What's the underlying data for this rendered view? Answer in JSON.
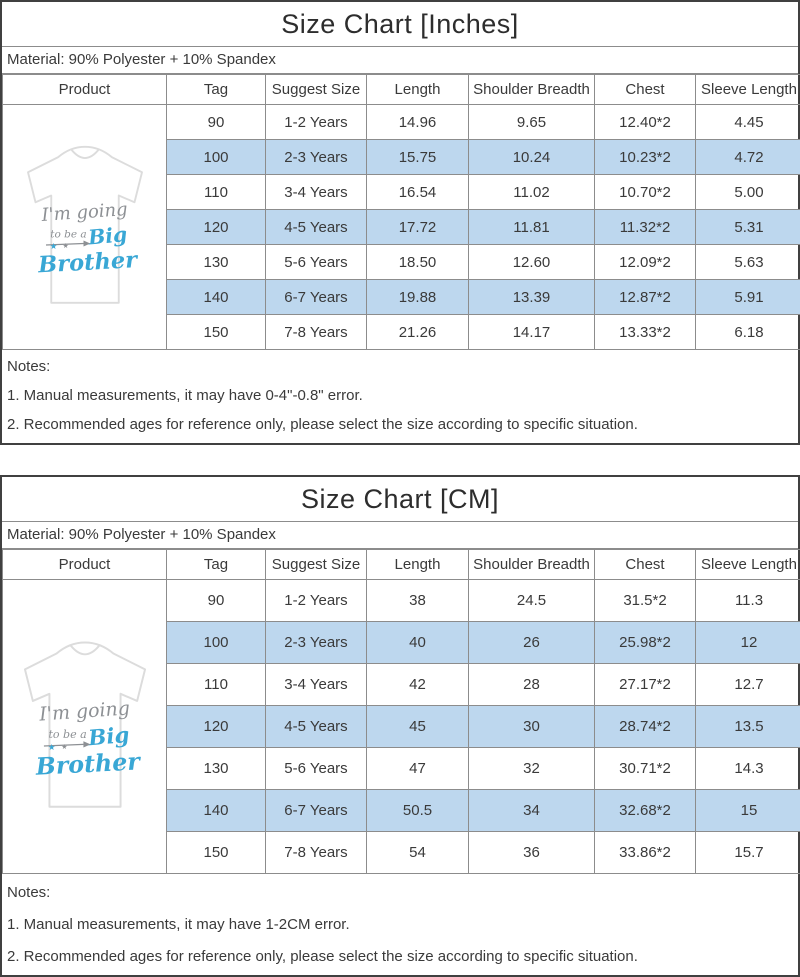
{
  "colors": {
    "row_highlight": "#BDD7EE",
    "border_outer": "#404040",
    "border_inner": "#8c8c8c",
    "text": "#3a3a3a",
    "shirt_outline": "#dcdcdc",
    "print_gray": "#8d9094",
    "print_blue": "#39a7d5"
  },
  "product_image": {
    "description": "white kids t-shirt with Big Brother print",
    "print_line1": "I'm going",
    "print_line2": "to be a",
    "print_line3": "Big",
    "print_line4": "Brother",
    "stars": "★"
  },
  "tables": [
    {
      "title": "Size Chart [Inches]",
      "material": "Material: 90% Polyester + 10% Spandex",
      "headers": [
        "Product",
        "Tag",
        "Suggest Size",
        "Length",
        "Shoulder Breadth",
        "Chest",
        "Sleeve Length"
      ],
      "rows": [
        [
          "90",
          "1-2 Years",
          "14.96",
          "9.65",
          "12.40*2",
          "4.45"
        ],
        [
          "100",
          "2-3 Years",
          "15.75",
          "10.24",
          "10.23*2",
          "4.72"
        ],
        [
          "110",
          "3-4 Years",
          "16.54",
          "11.02",
          "10.70*2",
          "5.00"
        ],
        [
          "120",
          "4-5 Years",
          "17.72",
          "11.81",
          "11.32*2",
          "5.31"
        ],
        [
          "130",
          "5-6 Years",
          "18.50",
          "12.60",
          "12.09*2",
          "5.63"
        ],
        [
          "140",
          "6-7 Years",
          "19.88",
          "13.39",
          "12.87*2",
          "5.91"
        ],
        [
          "150",
          "7-8 Years",
          "21.26",
          "14.17",
          "13.33*2",
          "6.18"
        ]
      ],
      "notes_label": "Notes:",
      "notes": [
        "1. Manual measurements, it may have 0-4\"-0.8\" error.",
        "2. Recommended ages for reference only, please select the size according to specific situation."
      ]
    },
    {
      "title": "Size Chart [CM]",
      "material": "Material: 90% Polyester + 10% Spandex",
      "headers": [
        "Product",
        "Tag",
        "Suggest Size",
        "Length",
        "Shoulder Breadth",
        "Chest",
        "Sleeve Length"
      ],
      "rows": [
        [
          "90",
          "1-2 Years",
          "38",
          "24.5",
          "31.5*2",
          "11.3"
        ],
        [
          "100",
          "2-3 Years",
          "40",
          "26",
          "25.98*2",
          "12"
        ],
        [
          "110",
          "3-4 Years",
          "42",
          "28",
          "27.17*2",
          "12.7"
        ],
        [
          "120",
          "4-5 Years",
          "45",
          "30",
          "28.74*2",
          "13.5"
        ],
        [
          "130",
          "5-6 Years",
          "47",
          "32",
          "30.71*2",
          "14.3"
        ],
        [
          "140",
          "6-7 Years",
          "50.5",
          "34",
          "32.68*2",
          "15"
        ],
        [
          "150",
          "7-8 Years",
          "54",
          "36",
          "33.86*2",
          "15.7"
        ]
      ],
      "notes_label": "Notes:",
      "notes": [
        "1. Manual measurements, it may have 1-2CM error.",
        "2. Recommended ages for reference only, please select the size according to specific situation."
      ]
    }
  ]
}
